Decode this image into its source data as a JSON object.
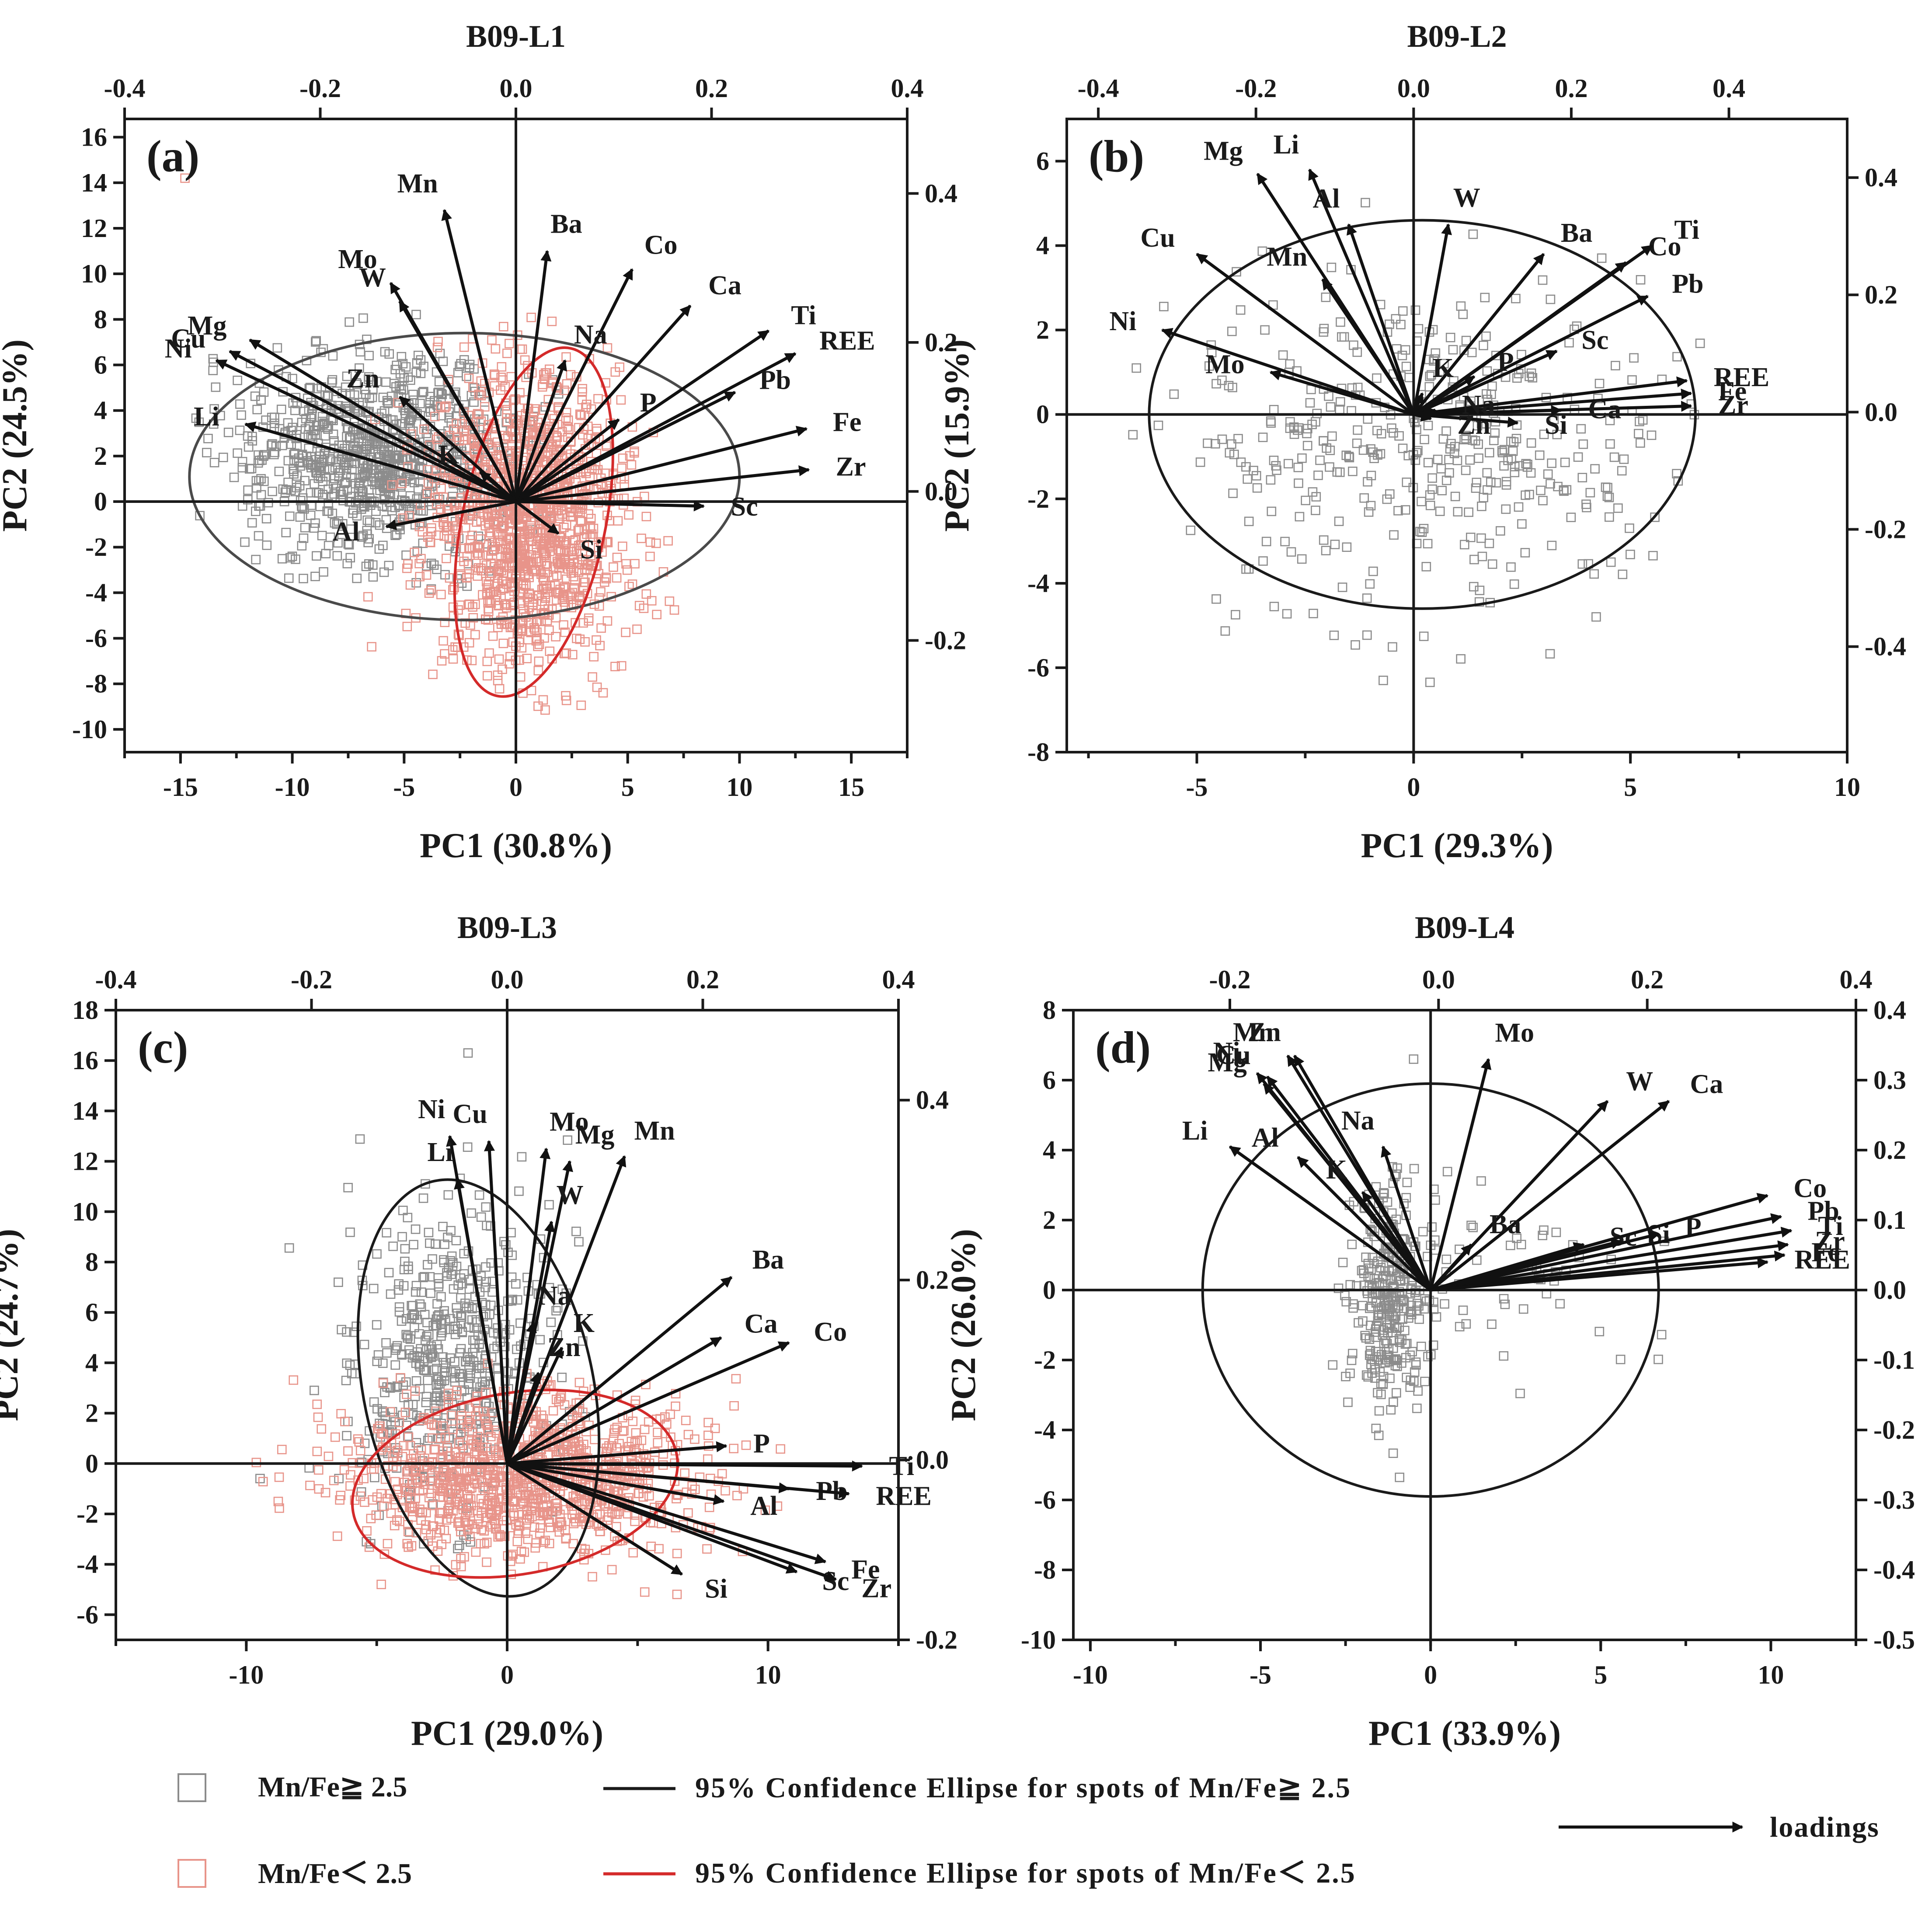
{
  "legend": {
    "marker_gray_label": "Mn/Fe≧ 2.5",
    "marker_red_label": "Mn/Fe＜ 2.5",
    "ellipse_black_label": "95% Confidence Ellipse for spots of Mn/Fe≧ 2.5",
    "ellipse_red_label": "95% Confidence Ellipse for spots of Mn/Fe＜ 2.5",
    "loadings_label": "loadings",
    "colors": {
      "gray": "#8c8c8c",
      "red": "#e8948a",
      "ellipse_black": "#1a1a1a",
      "ellipse_red": "#d42a2a"
    }
  },
  "chart_data": [
    {
      "type": "scatter",
      "id": "a",
      "panel_label": "(a)",
      "title": "B09-L1",
      "xlabel": "PC1 (30.8%)",
      "ylabel": "PC2 (24.5%)",
      "xlim": [
        -17.5,
        17.5
      ],
      "ylim": [
        -11,
        16.8
      ],
      "xticks": [
        -15,
        -10,
        -5,
        0,
        5,
        10,
        15
      ],
      "yticks": [
        -10,
        -8,
        -6,
        -4,
        -2,
        0,
        2,
        4,
        6,
        8,
        10,
        12,
        14,
        16
      ],
      "top_xlim": [
        -0.4,
        0.4
      ],
      "top_ticks": [
        "-0.4",
        "-0.2",
        "0.0",
        "0.2",
        "0.4"
      ],
      "right_ylim": [
        -0.35,
        0.5
      ],
      "right_ticks": [
        "-0.2",
        "0.0",
        "0.2",
        "0.4"
      ],
      "loadings": [
        {
          "name": "Mn",
          "x": -3.2,
          "y": 12.8
        },
        {
          "name": "Ba",
          "x": 1.4,
          "y": 11.0
        },
        {
          "name": "Co",
          "x": 5.2,
          "y": 10.2
        },
        {
          "name": "Ca",
          "x": 7.8,
          "y": 8.6
        },
        {
          "name": "Ti",
          "x": 11.3,
          "y": 7.5
        },
        {
          "name": "REE",
          "x": 12.5,
          "y": 6.5
        },
        {
          "name": "Pb",
          "x": 9.8,
          "y": 4.8
        },
        {
          "name": "Fe",
          "x": 13.0,
          "y": 3.2
        },
        {
          "name": "Zr",
          "x": 13.1,
          "y": 1.4
        },
        {
          "name": "Sc",
          "x": 8.4,
          "y": -0.2
        },
        {
          "name": "Si",
          "x": 1.9,
          "y": -1.4
        },
        {
          "name": "P",
          "x": 4.6,
          "y": 3.6
        },
        {
          "name": "Na",
          "x": 2.2,
          "y": 6.2
        },
        {
          "name": "Mo",
          "x": -5.6,
          "y": 9.6
        },
        {
          "name": "W",
          "x": -5.2,
          "y": 8.8
        },
        {
          "name": "Zn",
          "x": -5.2,
          "y": 4.6
        },
        {
          "name": "Mg",
          "x": -11.9,
          "y": 7.1
        },
        {
          "name": "Cu",
          "x": -12.8,
          "y": 6.6
        },
        {
          "name": "Ni",
          "x": -13.4,
          "y": 6.2
        },
        {
          "name": "Li",
          "x": -12.1,
          "y": 3.4
        },
        {
          "name": "Al",
          "x": -5.8,
          "y": -1.1
        },
        {
          "name": "K",
          "x": -1.6,
          "y": 1.3
        }
      ],
      "ellipses": [
        {
          "group": "Mn/Fe≧ 2.5",
          "cx": -2.3,
          "cy": 1.1,
          "rx": 12.3,
          "ry": 6.3,
          "angle": 0
        },
        {
          "group": "Mn/Fe＜ 2.5",
          "cx": 0.8,
          "cy": -0.9,
          "rx": 3.2,
          "ry": 7.8,
          "angle": 12
        }
      ],
      "clusters": [
        {
          "group": "gray",
          "n": 900,
          "cx": -6.3,
          "cy": 2.0,
          "sx": 3.2,
          "sy": 2.2,
          "x_range": [
            -14.5,
            2
          ],
          "y_range": [
            -6,
            10.5
          ]
        },
        {
          "group": "red",
          "n": 1300,
          "cx": 0.6,
          "cy": -0.8,
          "sx": 2.2,
          "sy": 3.2,
          "x_range": [
            -7,
            8
          ],
          "y_range": [
            -9.2,
            10
          ]
        }
      ],
      "outliers": [
        {
          "group": "red",
          "x": -14.8,
          "y": 14.2
        }
      ]
    },
    {
      "type": "scatter",
      "id": "b",
      "panel_label": "(b)",
      "title": "B09-L2",
      "xlabel": "PC1 (29.3%)",
      "ylabel": "PC2 (15.9%)",
      "xlim": [
        -8.0,
        10.0
      ],
      "ylim": [
        -8.0,
        7.0
      ],
      "xticks": [
        -5,
        0,
        5,
        10
      ],
      "yticks": [
        -8,
        -6,
        -4,
        -2,
        0,
        2,
        4,
        6
      ],
      "top_xlim": [
        -0.44,
        0.55
      ],
      "top_ticks": [
        "-0.4",
        "-0.2",
        "0.0",
        "0.2",
        "0.4"
      ],
      "right_ylim": [
        -0.58,
        0.5
      ],
      "right_ticks": [
        "-0.4",
        "-0.2",
        "0.0",
        "0.2",
        "0.4"
      ],
      "loadings": [
        {
          "name": "Mg",
          "x": -3.6,
          "y": 5.7
        },
        {
          "name": "Li",
          "x": -2.4,
          "y": 5.8
        },
        {
          "name": "Al",
          "x": -1.5,
          "y": 4.5
        },
        {
          "name": "Mn",
          "x": -2.1,
          "y": 3.2
        },
        {
          "name": "Cu",
          "x": -5.0,
          "y": 3.8
        },
        {
          "name": "Ni",
          "x": -5.8,
          "y": 2.0
        },
        {
          "name": "Mo",
          "x": -3.3,
          "y": 1.0
        },
        {
          "name": "W",
          "x": 0.8,
          "y": 4.5
        },
        {
          "name": "Ba",
          "x": 3.0,
          "y": 3.8
        },
        {
          "name": "Co",
          "x": 4.9,
          "y": 3.6
        },
        {
          "name": "Ti",
          "x": 5.5,
          "y": 4.0
        },
        {
          "name": "Pb",
          "x": 5.4,
          "y": 2.8
        },
        {
          "name": "Sc",
          "x": 3.3,
          "y": 1.5
        },
        {
          "name": "P",
          "x": 1.4,
          "y": 0.9
        },
        {
          "name": "K",
          "x": 0.2,
          "y": 0.5
        },
        {
          "name": "REE",
          "x": 6.3,
          "y": 0.8
        },
        {
          "name": "Fe",
          "x": 6.4,
          "y": 0.5
        },
        {
          "name": "Zr",
          "x": 6.4,
          "y": 0.2
        },
        {
          "name": "Ca",
          "x": 3.4,
          "y": 0.1
        },
        {
          "name": "Si",
          "x": 2.4,
          "y": -0.2
        },
        {
          "name": "Na",
          "x": 0.5,
          "y": 0.1
        },
        {
          "name": "Zn",
          "x": 0.4,
          "y": -0.1
        }
      ],
      "ellipses": [
        {
          "group": "Mn/Fe≧ 2.5",
          "cx": 0.2,
          "cy": 0.0,
          "rx": 6.3,
          "ry": 4.6,
          "angle": 0
        }
      ],
      "clusters": [
        {
          "group": "gray",
          "n": 420,
          "cx": 0.3,
          "cy": -0.9,
          "sx": 2.8,
          "sy": 1.9,
          "x_range": [
            -6.5,
            6.9
          ],
          "y_range": [
            -6.4,
            5.2
          ]
        }
      ],
      "outliers": [
        {
          "group": "gray",
          "x": -0.7,
          "y": -6.3
        }
      ]
    },
    {
      "type": "scatter",
      "id": "c",
      "panel_label": "(c)",
      "title": "B09-L3",
      "xlabel": "PC1 (29.0%)",
      "ylabel": "PC2 (24.7%)",
      "xlim": [
        -15.0,
        15.0
      ],
      "ylim": [
        -7.0,
        18.0
      ],
      "xticks": [
        -10,
        0,
        10
      ],
      "yticks": [
        -6,
        -4,
        -2,
        0,
        2,
        4,
        6,
        8,
        10,
        12,
        14,
        16,
        18
      ],
      "top_xlim": [
        -0.4,
        0.4
      ],
      "top_ticks": [
        "-0.4",
        "-0.2",
        "0.0",
        "0.2",
        "0.4"
      ],
      "right_ylim": [
        -0.2,
        0.5
      ],
      "right_ticks": [
        "-0.2",
        "0.0",
        "0.2",
        "0.4"
      ],
      "loadings": [
        {
          "name": "Ni",
          "x": -2.2,
          "y": 13.0
        },
        {
          "name": "Cu",
          "x": -0.7,
          "y": 12.8
        },
        {
          "name": "Li",
          "x": -1.9,
          "y": 11.3
        },
        {
          "name": "Mo",
          "x": 1.5,
          "y": 12.5
        },
        {
          "name": "Mg",
          "x": 2.4,
          "y": 12.0
        },
        {
          "name": "Mn",
          "x": 4.5,
          "y": 12.2
        },
        {
          "name": "W",
          "x": 1.7,
          "y": 9.6
        },
        {
          "name": "Na",
          "x": 1.0,
          "y": 5.6
        },
        {
          "name": "K",
          "x": 2.1,
          "y": 4.6
        },
        {
          "name": "Zn",
          "x": 1.2,
          "y": 3.6
        },
        {
          "name": "Ba",
          "x": 8.6,
          "y": 7.4
        },
        {
          "name": "Ca",
          "x": 8.2,
          "y": 5.0
        },
        {
          "name": "Co",
          "x": 10.8,
          "y": 4.8
        },
        {
          "name": "P",
          "x": 8.4,
          "y": 0.7
        },
        {
          "name": "Ti",
          "x": 13.6,
          "y": -0.1
        },
        {
          "name": "Pb",
          "x": 10.8,
          "y": -1.0
        },
        {
          "name": "REE",
          "x": 13.1,
          "y": -1.2
        },
        {
          "name": "Al",
          "x": 8.3,
          "y": -1.5
        },
        {
          "name": "Fe",
          "x": 12.2,
          "y": -3.9
        },
        {
          "name": "Sc",
          "x": 11.1,
          "y": -4.3
        },
        {
          "name": "Zr",
          "x": 12.6,
          "y": -4.6
        },
        {
          "name": "Si",
          "x": 6.7,
          "y": -4.4
        }
      ],
      "ellipses": [
        {
          "group": "Mn/Fe≧ 2.5",
          "cx": -1.1,
          "cy": 3.0,
          "rx": 4.4,
          "ry": 8.4,
          "angle": -12
        },
        {
          "group": "Mn/Fe＜ 2.5",
          "cx": 0.3,
          "cy": -0.8,
          "rx": 6.3,
          "ry": 3.6,
          "angle": -10
        }
      ],
      "clusters": [
        {
          "group": "gray",
          "n": 520,
          "cx": -2.2,
          "cy": 4.0,
          "sx": 1.9,
          "sy": 3.0,
          "x_range": [
            -9.5,
            5
          ],
          "y_range": [
            -4,
            16.4
          ]
        },
        {
          "group": "red",
          "n": 1100,
          "cx": 0.8,
          "cy": -0.6,
          "sx": 3.4,
          "sy": 1.6,
          "x_range": [
            -9.8,
            10.5
          ],
          "y_range": [
            -5.5,
            4
          ]
        }
      ],
      "outliers": [
        {
          "group": "gray",
          "x": -1.5,
          "y": 16.3
        }
      ]
    },
    {
      "type": "scatter",
      "id": "d",
      "panel_label": "(d)",
      "title": "B09-L4",
      "xlabel": "PC1 (33.9%)",
      "ylabel": "PC2 (26.0%)",
      "xlim": [
        -10.5,
        12.5
      ],
      "ylim": [
        -10.0,
        8.0
      ],
      "xticks": [
        -10,
        -5,
        0,
        5,
        10
      ],
      "yticks": [
        -10,
        -8,
        -6,
        -4,
        -2,
        0,
        2,
        4,
        6,
        8
      ],
      "top_xlim": [
        -0.35,
        0.4
      ],
      "top_ticks": [
        "-0.2",
        "0.0",
        "0.2",
        "0.4"
      ],
      "right_ylim": [
        -0.5,
        0.4
      ],
      "right_ticks": [
        "-0.5",
        "-0.4",
        "-0.3",
        "-0.2",
        "-0.1",
        "0.0",
        "0.1",
        "0.2",
        "0.3",
        "0.4"
      ],
      "loadings": [
        {
          "name": "Mn",
          "x": -4.2,
          "y": 6.7
        },
        {
          "name": "Zn",
          "x": -4.0,
          "y": 6.7
        },
        {
          "name": "Ni",
          "x": -5.1,
          "y": 6.2
        },
        {
          "name": "Cu",
          "x": -4.8,
          "y": 6.1
        },
        {
          "name": "Mg",
          "x": -4.9,
          "y": 5.9
        },
        {
          "name": "Li",
          "x": -5.9,
          "y": 4.1
        },
        {
          "name": "Al",
          "x": -3.9,
          "y": 3.8
        },
        {
          "name": "K",
          "x": -2.0,
          "y": 2.8
        },
        {
          "name": "Na",
          "x": -1.4,
          "y": 4.1
        },
        {
          "name": "Mo",
          "x": 1.7,
          "y": 6.6
        },
        {
          "name": "W",
          "x": 5.2,
          "y": 5.4
        },
        {
          "name": "Ca",
          "x": 7.0,
          "y": 5.4
        },
        {
          "name": "Ba",
          "x": 1.2,
          "y": 1.3
        },
        {
          "name": "Sc",
          "x": 4.5,
          "y": 1.3
        },
        {
          "name": "Si",
          "x": 5.6,
          "y": 1.4
        },
        {
          "name": "P",
          "x": 6.7,
          "y": 1.6
        },
        {
          "name": "Co",
          "x": 9.9,
          "y": 2.7
        },
        {
          "name": "Pb",
          "x": 10.3,
          "y": 2.1
        },
        {
          "name": "Ti",
          "x": 10.6,
          "y": 1.7
        },
        {
          "name": "Zr",
          "x": 10.5,
          "y": 1.3
        },
        {
          "name": "Fe",
          "x": 10.4,
          "y": 1.0
        },
        {
          "name": "REE",
          "x": 9.9,
          "y": 0.8
        }
      ],
      "ellipses": [
        {
          "group": "Mn/Fe≧ 2.5",
          "cx": 0.0,
          "cy": 0.0,
          "rx": 6.7,
          "ry": 5.9,
          "angle": 0
        }
      ],
      "clusters": [
        {
          "group": "gray",
          "n": 300,
          "cx": -1.2,
          "cy": -0.5,
          "sx": 0.6,
          "sy": 1.5,
          "x_range": [
            -3,
            1
          ],
          "y_range": [
            -8.7,
            4
          ]
        },
        {
          "group": "gray",
          "n": 60,
          "cx": 1.5,
          "cy": 0.5,
          "sx": 3.0,
          "sy": 1.6,
          "x_range": [
            -2,
            7
          ],
          "y_range": [
            -3.5,
            3.8
          ]
        }
      ],
      "outliers": [
        {
          "group": "gray",
          "x": -0.5,
          "y": 6.6
        }
      ]
    }
  ]
}
